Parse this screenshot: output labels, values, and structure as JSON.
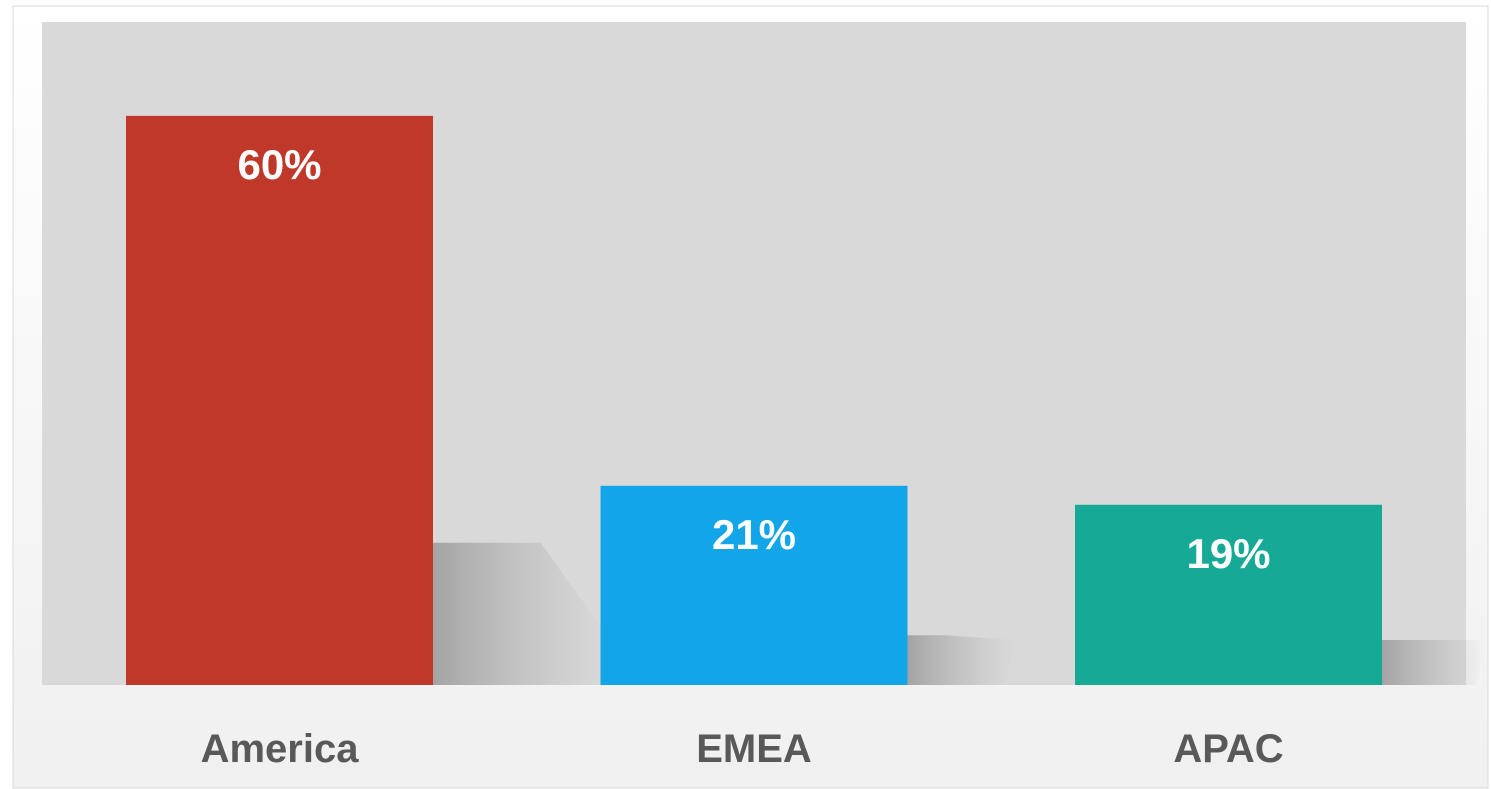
{
  "chart_data": {
    "type": "bar",
    "categories": [
      "America",
      "EMEA",
      "APAC"
    ],
    "values": [
      60,
      21,
      19
    ],
    "value_labels": [
      "60%",
      "21%",
      "19%"
    ],
    "colors": [
      "#BF382A",
      "#12A6E8",
      "#16AA96"
    ],
    "ylim": [
      0,
      70
    ],
    "grid": false,
    "legend": "none",
    "plot_background": "#D9D9D9",
    "label_color": "#FFFFFF",
    "axis_label_color": "#595959"
  }
}
